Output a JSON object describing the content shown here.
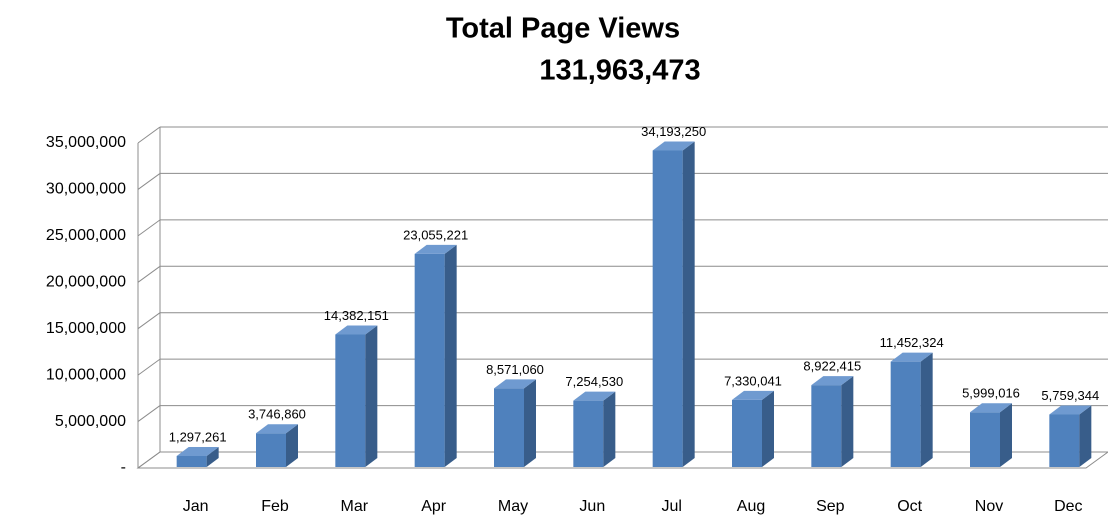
{
  "chart_data": {
    "type": "bar3d",
    "title": "Total Page Views",
    "subtitle": "131,963,473",
    "categories": [
      "Jan",
      "Feb",
      "Mar",
      "Apr",
      "May",
      "Jun",
      "Jul",
      "Aug",
      "Sep",
      "Oct",
      "Nov",
      "Dec"
    ],
    "values": [
      1297261,
      3746860,
      14382151,
      23055221,
      8571060,
      7254530,
      34193250,
      7330041,
      8922415,
      11452324,
      5999016,
      5759344
    ],
    "value_labels": [
      "1,297,261",
      "3,746,860",
      "14,382,151",
      "23,055,221",
      "8,571,060",
      "7,254,530",
      "34,193,250",
      "7,330,041",
      "8,922,415",
      "11,452,324",
      "5,999,016",
      "5,759,344"
    ],
    "color": "#4f81bd",
    "ylim": [
      0,
      35000000
    ],
    "yticks": [
      {
        "value": 0,
        "label": "-"
      },
      {
        "value": 5000000,
        "label": "5,000,000"
      },
      {
        "value": 10000000,
        "label": "10,000,000"
      },
      {
        "value": 15000000,
        "label": "15,000,000"
      },
      {
        "value": 20000000,
        "label": "20,000,000"
      },
      {
        "value": 25000000,
        "label": "25,000,000"
      },
      {
        "value": 30000000,
        "label": "30,000,000"
      },
      {
        "value": 35000000,
        "label": "35,000,000"
      }
    ],
    "grid": true
  }
}
